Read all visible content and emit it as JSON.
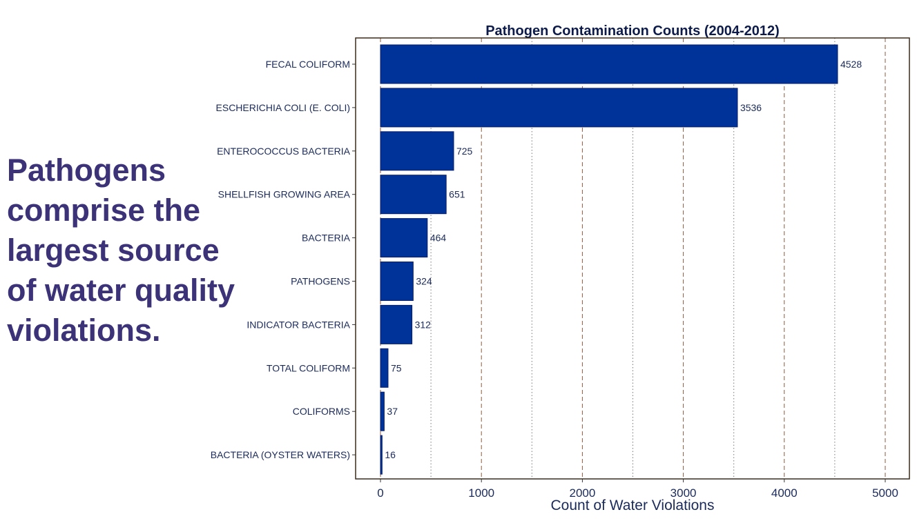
{
  "headline": "Pathogens\ncomprise the\nlargest source\nof water quality\nviolations.",
  "chart_data": {
    "type": "bar",
    "orientation": "horizontal",
    "title": "Pathogen Contamination Counts (2004-2012)",
    "xlabel": "Count of Water Violations",
    "ylabel": "",
    "xlim": [
      0,
      5000
    ],
    "xticks": [
      0,
      1000,
      2000,
      3000,
      4000,
      5000
    ],
    "grid": "vertical dashed",
    "categories": [
      "FECAL COLIFORM",
      "ESCHERICHIA COLI (E. COLI)",
      "ENTEROCOCCUS BACTERIA",
      "SHELLFISH GROWING AREA",
      "BACTERIA",
      "PATHOGENS",
      "INDICATOR BACTERIA",
      "TOTAL COLIFORM",
      "COLIFORMS",
      "BACTERIA (OYSTER WATERS)"
    ],
    "values": [
      4528,
      3536,
      725,
      651,
      464,
      324,
      312,
      75,
      37,
      16
    ],
    "bar_color": "#003399",
    "text_color": "#1a2a5a",
    "title_color": "#0d1b4a"
  }
}
